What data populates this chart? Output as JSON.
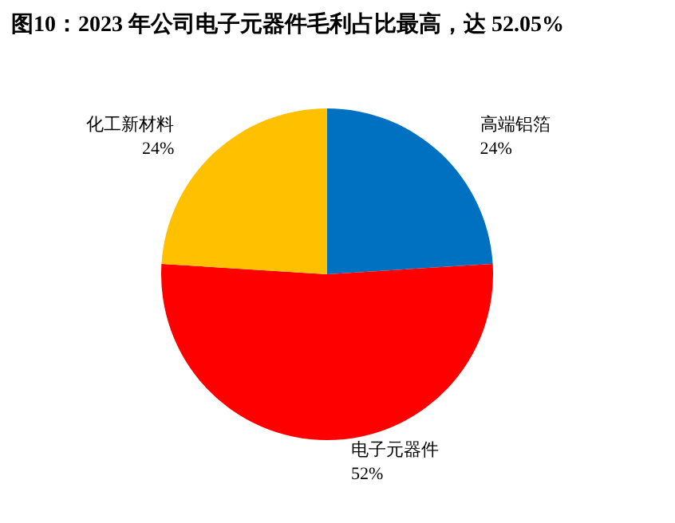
{
  "chart_data": {
    "type": "pie",
    "title": "图10：2023 年公司电子元器件毛利占比最高，达 52.05%",
    "categories": [
      "高端铝箔",
      "电子元器件",
      "化工新材料"
    ],
    "values": [
      24,
      52,
      24
    ],
    "colors": [
      "#0070c0",
      "#ff0000",
      "#ffc000"
    ],
    "value_labels": [
      "24%",
      "52%",
      "24%"
    ],
    "legend": false
  }
}
